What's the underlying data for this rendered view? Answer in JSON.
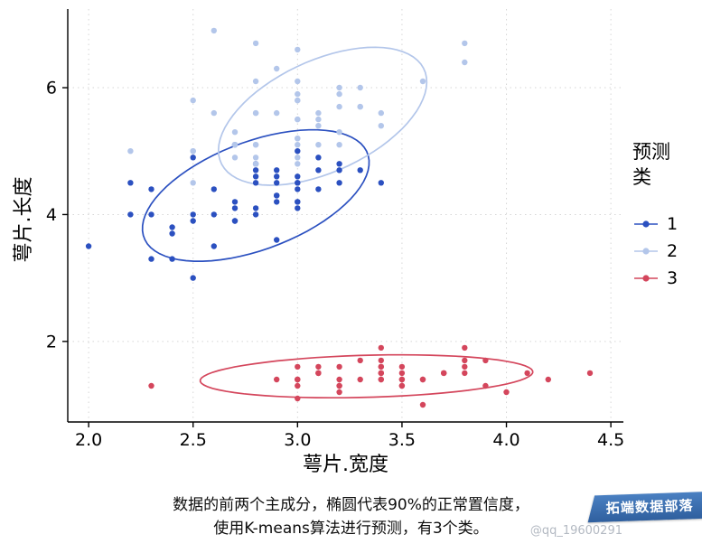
{
  "chart_data": {
    "type": "scatter",
    "title": "",
    "xlabel": "萼片.宽度",
    "ylabel": "萼片.长度",
    "xlim": [
      1.9,
      4.56
    ],
    "ylim": [
      0.73,
      7.24
    ],
    "grid": "dotted-major",
    "x_ticks": [
      "2.0",
      "2.5",
      "3.0",
      "3.5",
      "4.0",
      "4.5"
    ],
    "x_tick_values": [
      2.0,
      2.5,
      3.0,
      3.5,
      4.0,
      4.5
    ],
    "y_ticks": [
      "2",
      "4",
      "6"
    ],
    "y_tick_values": [
      2,
      4,
      6
    ],
    "legend": {
      "title": "预测类",
      "title_lines": [
        "预测",
        "类"
      ],
      "position": "right",
      "entries": [
        {
          "label": "1",
          "color": "#2b50c0"
        },
        {
          "label": "2",
          "color": "#b3c6ea"
        },
        {
          "label": "3",
          "color": "#d4465c"
        }
      ]
    },
    "series": [
      {
        "name": "1",
        "color": "#2b50c0",
        "points": [
          [
            3.2,
            4.7
          ],
          [
            3.2,
            4.5
          ],
          [
            3.1,
            4.9
          ],
          [
            2.3,
            4.0
          ],
          [
            2.8,
            4.6
          ],
          [
            2.8,
            4.5
          ],
          [
            3.3,
            4.7
          ],
          [
            2.4,
            3.3
          ],
          [
            2.9,
            4.6
          ],
          [
            2.7,
            3.9
          ],
          [
            2.0,
            3.5
          ],
          [
            3.0,
            4.2
          ],
          [
            2.2,
            4.0
          ],
          [
            2.9,
            4.7
          ],
          [
            2.9,
            3.6
          ],
          [
            3.1,
            4.4
          ],
          [
            3.0,
            4.5
          ],
          [
            2.7,
            4.1
          ],
          [
            2.2,
            4.5
          ],
          [
            2.5,
            3.9
          ],
          [
            3.2,
            4.8
          ],
          [
            2.8,
            4.0
          ],
          [
            2.5,
            4.9
          ],
          [
            2.8,
            4.7
          ],
          [
            2.9,
            4.3
          ],
          [
            3.0,
            4.4
          ],
          [
            2.8,
            4.8
          ],
          [
            3.0,
            5.0
          ],
          [
            2.9,
            4.5
          ],
          [
            2.6,
            3.5
          ],
          [
            2.4,
            3.8
          ],
          [
            2.4,
            3.7
          ],
          [
            2.7,
            3.9
          ],
          [
            2.7,
            5.1
          ],
          [
            3.0,
            4.5
          ],
          [
            3.4,
            4.5
          ],
          [
            3.1,
            4.7
          ],
          [
            2.3,
            4.4
          ],
          [
            3.0,
            4.1
          ],
          [
            2.5,
            4.0
          ],
          [
            2.6,
            4.4
          ],
          [
            3.0,
            4.6
          ],
          [
            2.6,
            4.0
          ],
          [
            2.3,
            3.3
          ],
          [
            2.7,
            4.2
          ],
          [
            3.0,
            4.2
          ],
          [
            2.9,
            4.2
          ],
          [
            2.9,
            4.3
          ],
          [
            2.5,
            3.0
          ],
          [
            2.8,
            4.1
          ]
        ]
      },
      {
        "name": "2",
        "color": "#b3c6ea",
        "points": [
          [
            3.3,
            6.0
          ],
          [
            2.7,
            5.1
          ],
          [
            3.0,
            5.9
          ],
          [
            2.9,
            5.6
          ],
          [
            3.0,
            5.8
          ],
          [
            3.0,
            6.6
          ],
          [
            2.5,
            4.5
          ],
          [
            2.9,
            6.3
          ],
          [
            2.5,
            5.8
          ],
          [
            3.6,
            6.1
          ],
          [
            3.2,
            5.1
          ],
          [
            2.7,
            5.3
          ],
          [
            3.0,
            5.5
          ],
          [
            2.5,
            5.0
          ],
          [
            2.8,
            5.1
          ],
          [
            3.2,
            5.3
          ],
          [
            3.0,
            5.5
          ],
          [
            3.8,
            6.7
          ],
          [
            2.6,
            6.9
          ],
          [
            2.2,
            5.0
          ],
          [
            3.2,
            5.7
          ],
          [
            2.8,
            4.9
          ],
          [
            2.8,
            6.7
          ],
          [
            2.7,
            4.9
          ],
          [
            3.3,
            5.7
          ],
          [
            3.2,
            6.0
          ],
          [
            2.8,
            4.8
          ],
          [
            3.0,
            4.9
          ],
          [
            2.8,
            5.6
          ],
          [
            3.0,
            5.8
          ],
          [
            2.8,
            6.1
          ],
          [
            3.8,
            6.4
          ],
          [
            2.8,
            5.6
          ],
          [
            2.8,
            5.1
          ],
          [
            2.6,
            5.6
          ],
          [
            3.0,
            6.1
          ],
          [
            3.4,
            5.6
          ],
          [
            3.1,
            5.5
          ],
          [
            3.0,
            4.8
          ],
          [
            3.1,
            5.4
          ],
          [
            3.1,
            5.6
          ],
          [
            3.1,
            5.1
          ],
          [
            2.7,
            5.1
          ],
          [
            3.2,
            5.9
          ],
          [
            3.3,
            5.7
          ],
          [
            3.0,
            5.2
          ],
          [
            2.5,
            5.0
          ],
          [
            3.0,
            5.2
          ],
          [
            3.4,
            5.4
          ],
          [
            3.0,
            5.1
          ]
        ]
      },
      {
        "name": "3",
        "color": "#d4465c",
        "points": [
          [
            3.5,
            1.4
          ],
          [
            3.0,
            1.4
          ],
          [
            3.2,
            1.3
          ],
          [
            3.1,
            1.5
          ],
          [
            3.6,
            1.4
          ],
          [
            3.9,
            1.7
          ],
          [
            3.4,
            1.4
          ],
          [
            3.4,
            1.5
          ],
          [
            2.9,
            1.4
          ],
          [
            3.1,
            1.5
          ],
          [
            3.7,
            1.5
          ],
          [
            3.4,
            1.6
          ],
          [
            3.0,
            1.4
          ],
          [
            3.0,
            1.1
          ],
          [
            4.0,
            1.2
          ],
          [
            4.4,
            1.5
          ],
          [
            3.9,
            1.3
          ],
          [
            3.5,
            1.4
          ],
          [
            3.8,
            1.7
          ],
          [
            3.8,
            1.5
          ],
          [
            3.4,
            1.7
          ],
          [
            3.7,
            1.5
          ],
          [
            3.6,
            1.0
          ],
          [
            3.3,
            1.7
          ],
          [
            3.4,
            1.9
          ],
          [
            3.0,
            1.6
          ],
          [
            3.4,
            1.6
          ],
          [
            3.5,
            1.5
          ],
          [
            3.4,
            1.4
          ],
          [
            3.2,
            1.6
          ],
          [
            3.1,
            1.6
          ],
          [
            3.4,
            1.5
          ],
          [
            4.1,
            1.5
          ],
          [
            4.2,
            1.4
          ],
          [
            3.1,
            1.5
          ],
          [
            3.2,
            1.2
          ],
          [
            3.5,
            1.3
          ],
          [
            3.6,
            1.4
          ],
          [
            3.0,
            1.3
          ],
          [
            3.4,
            1.5
          ],
          [
            3.5,
            1.3
          ],
          [
            2.3,
            1.3
          ],
          [
            3.2,
            1.3
          ],
          [
            3.5,
            1.6
          ],
          [
            3.8,
            1.9
          ],
          [
            3.0,
            1.4
          ],
          [
            3.8,
            1.6
          ],
          [
            3.2,
            1.4
          ],
          [
            3.7,
            1.5
          ],
          [
            3.3,
            1.4
          ]
        ]
      }
    ],
    "ellipses": [
      {
        "cluster": "1",
        "color": "#2b50c0",
        "cx": 2.8,
        "cy": 4.3,
        "a": 1.08,
        "b": 0.45,
        "angle_deg": 72
      },
      {
        "cluster": "2",
        "color": "#b3c6ea",
        "cx": 3.12,
        "cy": 5.55,
        "a": 1.12,
        "b": 0.42,
        "angle_deg": 75
      },
      {
        "cluster": "3",
        "color": "#d4465c",
        "cx": 3.33,
        "cy": 1.45,
        "a": 0.8,
        "b": 0.33,
        "angle_deg": 6
      }
    ],
    "caption_lines": [
      "数据的前两个主成分，椭圆代表90%的正常置信度，",
      "使用K-means算法进行预测，有3个类。"
    ]
  },
  "watermark": {
    "ribbon_text": "拓端数据部落",
    "handle_text": "@qq_19600291"
  }
}
